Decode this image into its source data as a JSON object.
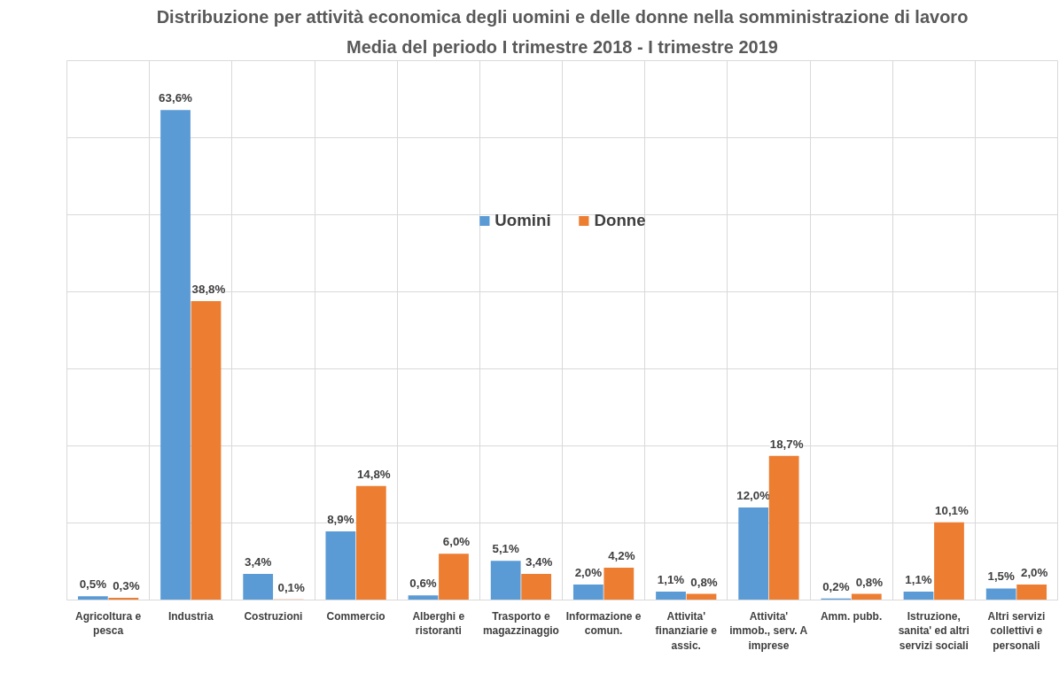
{
  "chart_data": {
    "type": "bar",
    "title": "Distribuzione per attività economica degli uomini e delle donne nella somministrazione di lavoro",
    "subtitle": "Media del periodo I trimestre 2018 - I trimestre 2019",
    "categories": [
      "Agricoltura e pesca",
      "Industria",
      "Costruzioni",
      "Commercio",
      "Alberghi e ristoranti",
      "Trasporto e magazzinaggio",
      "Informazione e comun.",
      "Attivita' finanziarie e assic.",
      "Attivita' immob., serv. A imprese",
      "Amm. pubb.",
      "Istruzione, sanita' ed altri servizi sociali",
      "Altri servizi collettivi e personali"
    ],
    "series": [
      {
        "name": "Uomini",
        "color": "#5b9bd5",
        "values": [
          0.5,
          63.6,
          3.4,
          8.9,
          0.6,
          5.1,
          2.0,
          1.1,
          12.0,
          0.2,
          1.1,
          1.5
        ],
        "value_labels": [
          "0,5%",
          "63,6%",
          "3,4%",
          "8,9%",
          "0,6%",
          "5,1%",
          "2,0%",
          "1,1%",
          "12,0%",
          "0,2%",
          "1,1%",
          "1,5%"
        ]
      },
      {
        "name": "Donne",
        "color": "#ed7d31",
        "values": [
          0.3,
          38.8,
          0.1,
          14.8,
          6.0,
          3.4,
          4.2,
          0.8,
          18.7,
          0.8,
          10.1,
          2.0
        ],
        "value_labels": [
          "0,3%",
          "38,8%",
          "0,1%",
          "14,8%",
          "6,0%",
          "3,4%",
          "4,2%",
          "0,8%",
          "18,7%",
          "0,8%",
          "10,1%",
          "2,0%"
        ]
      }
    ],
    "ylim": [
      0,
      70
    ],
    "yticks": [
      {
        "value": 0,
        "label": null
      },
      {
        "value": 10,
        "label": null
      },
      {
        "value": 20,
        "label": null
      },
      {
        "value": 30,
        "label": null
      },
      {
        "value": 40,
        "label": null
      },
      {
        "value": 50,
        "label": null
      },
      {
        "value": 60,
        "label": null
      },
      {
        "value": 70,
        "label": null
      }
    ],
    "tick_labels": "x",
    "grid": true,
    "legend": "top"
  }
}
